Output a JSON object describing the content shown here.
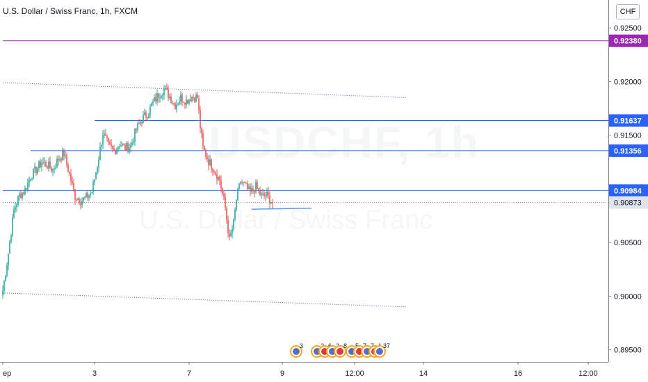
{
  "header": {
    "title": "U.S. Dollar / Swiss Franc, 1h, FXCM",
    "currency": "CHF"
  },
  "watermark": {
    "symbol": "USDCHF, 1h",
    "name": "U.S. Dollar / Swiss Franc"
  },
  "colors": {
    "up": "#26a69a",
    "down": "#ef5350",
    "level_line": "#2962ff",
    "magenta_line": "#9c27b0",
    "channel": "#5c5ca8",
    "current_price": "#e0e3eb"
  },
  "chart_data": {
    "type": "candlestick",
    "title": "U.S. Dollar / Swiss Franc, 1h, FXCM",
    "currency": "CHF",
    "y_axis": {
      "range": [
        0.892,
        0.9276
      ],
      "ticks": [
        "0.92500",
        "0.92000",
        "0.91500",
        "0.90500",
        "0.90000",
        "0.89500"
      ],
      "position": "right"
    },
    "x_axis": {
      "ticks": [
        "ep",
        "3",
        "7",
        "9",
        "12:00",
        "14",
        "16",
        "12:00"
      ]
    },
    "price_labels": [
      {
        "value": "0.92380",
        "style": "magenta"
      },
      {
        "value": "0.91637",
        "style": "blue"
      },
      {
        "value": "0.91356",
        "style": "blue"
      },
      {
        "value": "0.90984",
        "style": "blue"
      },
      {
        "value": "0.90873",
        "style": "current"
      }
    ],
    "horizontal_lines": [
      {
        "price": 0.9238,
        "style": "magenta",
        "from_bar": 0
      },
      {
        "price": 0.91637,
        "style": "blue",
        "from_bar": 66
      },
      {
        "price": 0.91356,
        "style": "blue",
        "from_bar": 20
      },
      {
        "price": 0.90984,
        "style": "blue",
        "from_bar": 0
      },
      {
        "price": 0.90873,
        "style": "current",
        "from_bar": 0
      }
    ],
    "channel": [
      {
        "p1": [
          0,
          0.9199
        ],
        "p2": [
          291,
          0.9185
        ]
      },
      {
        "p1": [
          0,
          0.9003
        ],
        "p2": [
          291,
          0.899
        ]
      }
    ],
    "trend_segment": {
      "p1": [
        179,
        0.9081
      ],
      "p2": [
        222,
        0.9082
      ]
    },
    "anchor_closes": [
      [
        0,
        0.9005
      ],
      [
        4,
        0.904
      ],
      [
        8,
        0.908
      ],
      [
        12,
        0.9094
      ],
      [
        16,
        0.9099
      ],
      [
        20,
        0.9112
      ],
      [
        24,
        0.9118
      ],
      [
        28,
        0.9125
      ],
      [
        32,
        0.9122
      ],
      [
        36,
        0.9118
      ],
      [
        40,
        0.9128
      ],
      [
        44,
        0.9133
      ],
      [
        48,
        0.9113
      ],
      [
        52,
        0.9093
      ],
      [
        56,
        0.9089
      ],
      [
        60,
        0.9092
      ],
      [
        64,
        0.9097
      ],
      [
        68,
        0.9122
      ],
      [
        72,
        0.9152
      ],
      [
        76,
        0.914
      ],
      [
        80,
        0.9135
      ],
      [
        84,
        0.9142
      ],
      [
        88,
        0.9138
      ],
      [
        92,
        0.914
      ],
      [
        96,
        0.9155
      ],
      [
        100,
        0.9165
      ],
      [
        104,
        0.917
      ],
      [
        108,
        0.918
      ],
      [
        112,
        0.9188
      ],
      [
        116,
        0.9193
      ],
      [
        120,
        0.9186
      ],
      [
        124,
        0.9178
      ],
      [
        128,
        0.9185
      ],
      [
        132,
        0.9182
      ],
      [
        136,
        0.9186
      ],
      [
        140,
        0.9185
      ],
      [
        142,
        0.9158
      ],
      [
        144,
        0.9138
      ],
      [
        148,
        0.9126
      ],
      [
        152,
        0.9118
      ],
      [
        156,
        0.9108
      ],
      [
        160,
        0.9082
      ],
      [
        163,
        0.9052
      ],
      [
        166,
        0.9068
      ],
      [
        168,
        0.909
      ],
      [
        171,
        0.9107
      ],
      [
        174,
        0.9103
      ],
      [
        178,
        0.9096
      ],
      [
        182,
        0.9102
      ],
      [
        186,
        0.9093
      ],
      [
        190,
        0.9094
      ],
      [
        194,
        0.9087
      ]
    ],
    "events": [
      {
        "bar": 211,
        "labels": [
          "3"
        ]
      },
      {
        "bar": 226,
        "labels": [
          "2",
          "6",
          "2",
          "8"
        ]
      },
      {
        "bar": 251,
        "labels": [
          "5",
          "7",
          "7",
          "1"
        ]
      },
      {
        "bar": 271,
        "labels": [
          "37"
        ]
      }
    ]
  }
}
